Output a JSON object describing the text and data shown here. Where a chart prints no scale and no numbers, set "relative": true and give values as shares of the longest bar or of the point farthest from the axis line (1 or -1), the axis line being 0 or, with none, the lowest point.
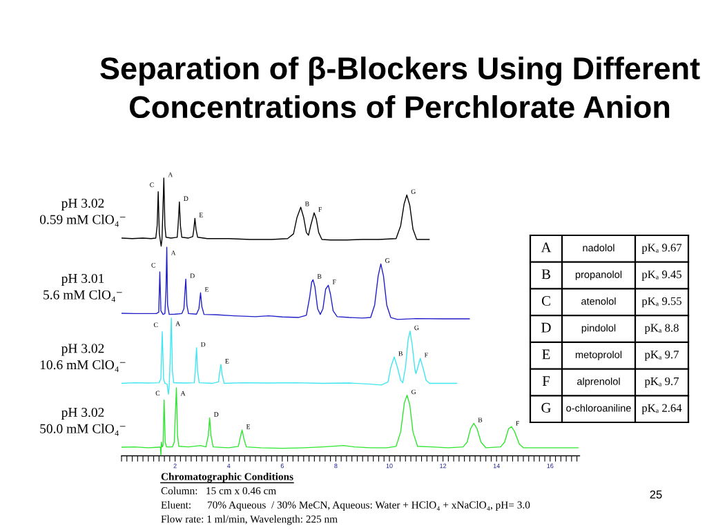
{
  "chart_data": [
    {
      "type": "line",
      "title": "Separation of β-Blockers Using Different\nConcentrations of Perchlorate Anion",
      "relative": true,
      "xlim": [
        0,
        17.1
      ],
      "tick_labels": "x",
      "xticks": [
        {
          "value": 0,
          "label": null
        },
        {
          "value": 0.2,
          "label": null
        },
        {
          "value": 0.4,
          "label": null
        },
        {
          "value": 0.6,
          "label": null
        },
        {
          "value": 0.8,
          "label": null
        },
        {
          "value": 1,
          "label": null
        },
        {
          "value": 1.2,
          "label": null
        },
        {
          "value": 1.4,
          "label": null
        },
        {
          "value": 1.6,
          "label": null
        },
        {
          "value": 1.8,
          "label": null
        },
        2,
        {
          "value": 2.2,
          "label": null
        },
        {
          "value": 2.4,
          "label": null
        },
        {
          "value": 2.6,
          "label": null
        },
        {
          "value": 2.8,
          "label": null
        },
        {
          "value": 3,
          "label": null
        },
        {
          "value": 3.2,
          "label": null
        },
        {
          "value": 3.4,
          "label": null
        },
        {
          "value": 3.6,
          "label": null
        },
        {
          "value": 3.8,
          "label": null
        },
        4,
        {
          "value": 4.2,
          "label": null
        },
        {
          "value": 4.4,
          "label": null
        },
        {
          "value": 4.6,
          "label": null
        },
        {
          "value": 4.8,
          "label": null
        },
        {
          "value": 5,
          "label": null
        },
        {
          "value": 5.2,
          "label": null
        },
        {
          "value": 5.4,
          "label": null
        },
        {
          "value": 5.6,
          "label": null
        },
        {
          "value": 5.8,
          "label": null
        },
        6,
        {
          "value": 6.2,
          "label": null
        },
        {
          "value": 6.4,
          "label": null
        },
        {
          "value": 6.6,
          "label": null
        },
        {
          "value": 6.8,
          "label": null
        },
        {
          "value": 7,
          "label": null
        },
        {
          "value": 7.2,
          "label": null
        },
        {
          "value": 7.4,
          "label": null
        },
        {
          "value": 7.6,
          "label": null
        },
        {
          "value": 7.8,
          "label": null
        },
        8,
        {
          "value": 8.2,
          "label": null
        },
        {
          "value": 8.4,
          "label": null
        },
        {
          "value": 8.6,
          "label": null
        },
        {
          "value": 8.8,
          "label": null
        },
        {
          "value": 9,
          "label": null
        },
        {
          "value": 9.2,
          "label": null
        },
        {
          "value": 9.4,
          "label": null
        },
        {
          "value": 9.6,
          "label": null
        },
        {
          "value": 9.8,
          "label": null
        },
        10,
        {
          "value": 10.2,
          "label": null
        },
        {
          "value": 10.4,
          "label": null
        },
        {
          "value": 10.6,
          "label": null
        },
        {
          "value": 10.8,
          "label": null
        },
        {
          "value": 11,
          "label": null
        },
        {
          "value": 11.2,
          "label": null
        },
        {
          "value": 11.4,
          "label": null
        },
        {
          "value": 11.6,
          "label": null
        },
        {
          "value": 11.8,
          "label": null
        },
        12,
        {
          "value": 12.2,
          "label": null
        },
        {
          "value": 12.4,
          "label": null
        },
        {
          "value": 12.6,
          "label": null
        },
        {
          "value": 12.8,
          "label": null
        },
        {
          "value": 13,
          "label": null
        },
        {
          "value": 13.2,
          "label": null
        },
        {
          "value": 13.4,
          "label": null
        },
        {
          "value": 13.6,
          "label": null
        },
        {
          "value": 13.8,
          "label": null
        },
        14,
        {
          "value": 14.2,
          "label": null
        },
        {
          "value": 14.4,
          "label": null
        },
        {
          "value": 14.6,
          "label": null
        },
        {
          "value": 14.8,
          "label": null
        },
        {
          "value": 15,
          "label": null
        },
        {
          "value": 15.2,
          "label": null
        },
        {
          "value": 15.4,
          "label": null
        },
        {
          "value": 15.6,
          "label": null
        },
        {
          "value": 15.8,
          "label": null
        },
        16,
        {
          "value": 16.2,
          "label": null
        },
        {
          "value": 16.4,
          "label": null
        },
        {
          "value": 16.6,
          "label": null
        },
        {
          "value": 16.8,
          "label": null
        },
        {
          "value": 17,
          "label": null
        }
      ],
      "series": [
        {
          "name": "pH 3.02\n0.59 mM ClO₄⁻",
          "color": "#000000",
          "x": [
            0.0,
            0.4,
            0.8,
            1.1,
            1.28,
            1.33,
            1.37,
            1.41,
            1.45,
            1.48,
            1.51,
            1.54,
            1.58,
            1.62,
            1.66,
            1.85,
            2.08,
            2.12,
            2.16,
            2.2,
            2.25,
            2.5,
            2.66,
            2.7,
            2.74,
            2.78,
            2.84,
            3.2,
            4.0,
            4.8,
            5.6,
            6.2,
            6.42,
            6.55,
            6.69,
            6.8,
            6.9,
            6.98,
            7.06,
            7.19,
            7.27,
            7.36,
            7.48,
            7.8,
            8.4,
            9.0,
            9.6,
            10.25,
            10.42,
            10.55,
            10.65,
            10.76,
            10.88,
            11.02,
            11.2,
            11.49
          ],
          "values": [
            0.784,
            0.782,
            0.784,
            0.782,
            0.784,
            0.828,
            0.951,
            0.804,
            0.774,
            0.755,
            0.779,
            0.865,
            1.0,
            0.828,
            0.787,
            0.784,
            0.787,
            0.841,
            0.914,
            0.828,
            0.787,
            0.784,
            0.789,
            0.816,
            0.855,
            0.816,
            0.787,
            0.782,
            0.782,
            0.779,
            0.779,
            0.782,
            0.799,
            0.858,
            0.895,
            0.858,
            0.804,
            0.794,
            0.828,
            0.875,
            0.853,
            0.804,
            0.779,
            0.777,
            0.777,
            0.779,
            0.779,
            0.782,
            0.828,
            0.907,
            0.939,
            0.902,
            0.816,
            0.779,
            0.779,
            0.779
          ]
        },
        {
          "name": "pH 3.01\n5.6 mM ClO₄⁻",
          "color": "#1f1fc8",
          "x": [
            0.0,
            0.5,
            1.0,
            1.3,
            1.39,
            1.43,
            1.47,
            1.55,
            1.62,
            1.66,
            1.69,
            1.72,
            1.78,
            2.0,
            2.25,
            2.33,
            2.37,
            2.4,
            2.44,
            2.5,
            2.8,
            2.89,
            2.95,
            3.0,
            3.08,
            3.5,
            4.2,
            5.0,
            5.5,
            6.0,
            6.6,
            6.9,
            7.02,
            7.1,
            7.15,
            7.22,
            7.32,
            7.42,
            7.52,
            7.62,
            7.72,
            7.8,
            7.9,
            8.05,
            8.5,
            9.0,
            9.3,
            9.45,
            9.58,
            9.68,
            9.78,
            9.9,
            10.05,
            10.3,
            11.0,
            12.0,
            12.99
          ],
          "values": [
            0.513,
            0.512,
            0.512,
            0.512,
            0.517,
            0.662,
            0.522,
            0.509,
            0.512,
            0.595,
            0.751,
            0.543,
            0.509,
            0.51,
            0.512,
            0.53,
            0.595,
            0.636,
            0.543,
            0.512,
            0.51,
            0.53,
            0.587,
            0.537,
            0.509,
            0.508,
            0.504,
            0.501,
            0.504,
            0.5,
            0.498,
            0.506,
            0.569,
            0.626,
            0.634,
            0.608,
            0.53,
            0.509,
            0.53,
            0.6,
            0.614,
            0.582,
            0.522,
            0.501,
            0.498,
            0.496,
            0.498,
            0.543,
            0.647,
            0.691,
            0.647,
            0.543,
            0.498,
            0.491,
            0.494,
            0.493,
            0.493
          ]
        },
        {
          "name": "pH 3.02\n10.6 mM ClO₄⁻",
          "color": "#3ee6f0",
          "x": [
            0.0,
            0.5,
            1.0,
            1.4,
            1.47,
            1.52,
            1.57,
            1.62,
            1.7,
            1.73,
            1.75,
            1.78,
            1.82,
            1.86,
            1.9,
            1.95,
            2.4,
            2.72,
            2.76,
            2.8,
            2.84,
            2.9,
            3.4,
            3.62,
            3.67,
            3.71,
            3.76,
            3.83,
            4.5,
            5.5,
            6.5,
            7.5,
            8.5,
            9.3,
            9.7,
            9.95,
            10.05,
            10.18,
            10.3,
            10.42,
            10.5,
            10.6,
            10.7,
            10.77,
            10.85,
            10.95,
            10.99,
            11.06,
            11.15,
            11.25,
            11.37,
            11.5,
            12.0,
            12.52
          ],
          "values": [
            0.261,
            0.263,
            0.262,
            0.263,
            0.277,
            0.447,
            0.277,
            0.261,
            0.258,
            0.236,
            0.222,
            0.25,
            0.359,
            0.496,
            0.304,
            0.263,
            0.262,
            0.263,
            0.318,
            0.389,
            0.304,
            0.263,
            0.261,
            0.266,
            0.304,
            0.329,
            0.291,
            0.261,
            0.263,
            0.262,
            0.263,
            0.261,
            0.262,
            0.258,
            0.255,
            0.266,
            0.318,
            0.356,
            0.318,
            0.272,
            0.263,
            0.318,
            0.419,
            0.449,
            0.4,
            0.313,
            0.296,
            0.318,
            0.351,
            0.318,
            0.272,
            0.261,
            0.261,
            0.261
          ]
        },
        {
          "name": "pH 3.02\n50.0 mM ClO₄⁻",
          "color": "#2ee62e",
          "x": [
            0.0,
            0.5,
            1.0,
            1.4,
            1.45,
            1.47,
            1.49,
            1.52,
            1.55,
            1.59,
            1.63,
            1.68,
            1.9,
            1.97,
            2.01,
            2.05,
            2.09,
            2.14,
            2.5,
            2.95,
            3.15,
            3.24,
            3.29,
            3.34,
            3.42,
            4.0,
            4.36,
            4.44,
            4.5,
            4.57,
            4.66,
            5.2,
            6.0,
            6.8,
            7.5,
            8.3,
            8.7,
            9.3,
            9.9,
            10.25,
            10.42,
            10.56,
            10.66,
            10.76,
            10.88,
            11.05,
            11.6,
            12.2,
            12.75,
            12.9,
            13.03,
            13.15,
            13.27,
            13.42,
            13.6,
            14.15,
            14.3,
            14.45,
            14.56,
            14.68,
            14.85,
            15.0,
            15.6,
            16.3,
            17.05
          ],
          "values": [
            0.031,
            0.032,
            0.029,
            0.031,
            0.031,
            0.004,
            0.049,
            0.032,
            0.037,
            0.201,
            0.049,
            0.032,
            0.032,
            0.049,
            0.147,
            0.245,
            0.073,
            0.034,
            0.032,
            0.037,
            0.032,
            0.073,
            0.137,
            0.073,
            0.032,
            0.029,
            0.034,
            0.069,
            0.093,
            0.061,
            0.032,
            0.029,
            0.027,
            0.029,
            0.032,
            0.037,
            0.032,
            0.029,
            0.029,
            0.034,
            0.086,
            0.191,
            0.218,
            0.184,
            0.086,
            0.034,
            0.032,
            0.029,
            0.032,
            0.049,
            0.098,
            0.117,
            0.098,
            0.049,
            0.029,
            0.032,
            0.049,
            0.098,
            0.105,
            0.086,
            0.042,
            0.029,
            0.029,
            0.029,
            0.029
          ]
        }
      ],
      "annotations": [
        {
          "text": "C",
          "x": 1.37,
          "y": 0.951
        },
        {
          "text": "A",
          "x": 1.58,
          "y": 1.0
        },
        {
          "text": "D",
          "x": 2.16,
          "y": 0.914
        },
        {
          "text": "E",
          "x": 2.74,
          "y": 0.855
        },
        {
          "text": "B",
          "x": 6.69,
          "y": 0.895
        },
        {
          "text": "F",
          "x": 7.19,
          "y": 0.875
        },
        {
          "text": "G",
          "x": 10.65,
          "y": 0.939
        },
        {
          "text": "C",
          "x": 1.43,
          "y": 0.662
        },
        {
          "text": "A",
          "x": 1.69,
          "y": 0.751
        },
        {
          "text": "D",
          "x": 2.4,
          "y": 0.636
        },
        {
          "text": "E",
          "x": 2.95,
          "y": 0.587
        },
        {
          "text": "B",
          "x": 7.15,
          "y": 0.634
        },
        {
          "text": "F",
          "x": 7.72,
          "y": 0.614
        },
        {
          "text": "G",
          "x": 9.68,
          "y": 0.691
        },
        {
          "text": "C",
          "x": 1.52,
          "y": 0.447
        },
        {
          "text": "A",
          "x": 1.86,
          "y": 0.496
        },
        {
          "text": "D",
          "x": 2.8,
          "y": 0.389
        },
        {
          "text": "E",
          "x": 3.71,
          "y": 0.329
        },
        {
          "text": "B",
          "x": 10.18,
          "y": 0.356
        },
        {
          "text": "G",
          "x": 10.77,
          "y": 0.449
        },
        {
          "text": "F",
          "x": 11.15,
          "y": 0.351
        },
        {
          "text": "C",
          "x": 1.59,
          "y": 0.201
        },
        {
          "text": "A",
          "x": 2.05,
          "y": 0.245
        },
        {
          "text": "D",
          "x": 3.29,
          "y": 0.137
        },
        {
          "text": "E",
          "x": 4.5,
          "y": 0.093
        },
        {
          "text": "G",
          "x": 10.66,
          "y": 0.218
        },
        {
          "text": "B",
          "x": 13.15,
          "y": 0.117
        },
        {
          "text": "F",
          "x": 14.56,
          "y": 0.105
        },
        "Chromatographic Conditions",
        "Column:   15 cm x 0.46 cm",
        "Eluent:      70% Aqueous  / 30% MeCN, Aqueous: Water + HClO₄ + xNaClO₄, pH= 3.0",
        "Flow rate: 1 ml/min, Wavelength: 225 nm",
        "25"
      ]
    },
    {
      "type": "other",
      "annotations": [
        "A",
        "nadolol",
        "pKₐ 9.67",
        "B",
        "propanolol",
        "pKₐ 9.45",
        "C",
        "atenolol",
        "pKₐ 9.55",
        "D",
        "pindolol",
        "pKₐ 8.8",
        "E",
        "metoprolol",
        "pKₐ 9.7",
        "F",
        "alprenolol",
        "pKₐ 9.7",
        "G",
        "o-chloroaniline",
        "pKₐ 2.64"
      ]
    }
  ]
}
